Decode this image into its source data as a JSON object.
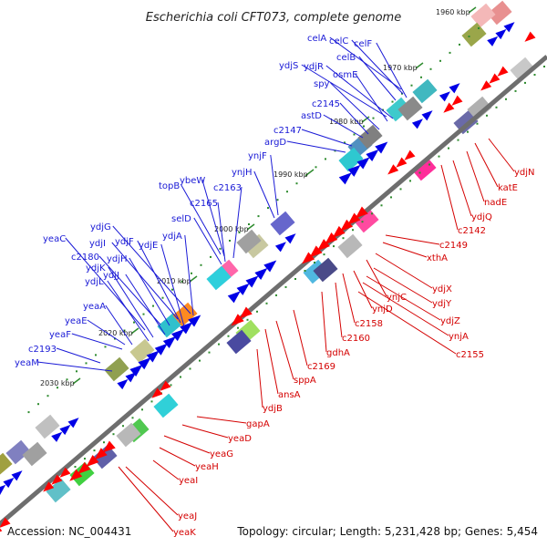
{
  "title": "Escherichia coli CFT073, complete genome",
  "footer": {
    "accession": "Accession: NC_004431",
    "topology": "Topology: circular; Length: 5,231,428 bp; Genes: 5,454"
  },
  "ticks": [
    "1960 kbp",
    "1970 kbp",
    "1980 kbp",
    "1990 kbp",
    "2000 kbp",
    "2010 kbp",
    "2020 kbp",
    "2030 kbp"
  ],
  "colors": {
    "forward_strand": "#0000e6",
    "reverse_strand": "#ff0000",
    "backbone": "#808080",
    "tick_marks": "#2e8b2e"
  },
  "genes_forward": [
    "celA",
    "celC",
    "celF",
    "celB",
    "ydjS",
    "ydjR",
    "osmE",
    "spy",
    "c2145",
    "astD",
    "c2147",
    "argD",
    "ynjF",
    "ynjH",
    "topB",
    "ybeW",
    "c2163",
    "c2165",
    "selD",
    "ydjG",
    "yeaC",
    "ydjI",
    "ydjF",
    "c2180",
    "ydjE",
    "ydjA",
    "ydjH",
    "ydjK",
    "ydjJ",
    "ydjL",
    "yeaA",
    "yeaE",
    "yeaF",
    "c2193",
    "yeaM"
  ],
  "genes_reverse": [
    "ydjN",
    "katE",
    "nadE",
    "ydjQ",
    "c2142",
    "c2149",
    "xthA",
    "ydjX",
    "ynjC",
    "ydjY",
    "ynjD",
    "ydjZ",
    "ynjA",
    "c2155",
    "c2158",
    "c2160",
    "gdhA",
    "c2169",
    "sppA",
    "ansA",
    "ydjB",
    "gapA",
    "yeaD",
    "yeaG",
    "yeaH",
    "yeaI",
    "yeaJ",
    "yeaK"
  ]
}
